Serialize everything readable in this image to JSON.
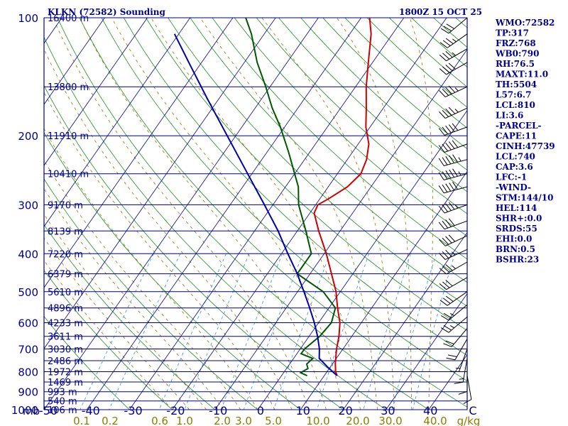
{
  "header": {
    "station": "KLKN (72582) Sounding",
    "time": "1800Z 15 OCT 25"
  },
  "indices": [
    "WMO:72582",
    "TP:317",
    "FRZ:768",
    "WB0:790",
    "RH:76.5",
    "MAXT:11.0",
    "TH:5504",
    "L57:6.7",
    "LCL:810",
    "LI:3.6",
    "-PARCEL-",
    "CAPE:11",
    "CINH:47739",
    "LCL:740",
    "CAP:3.6",
    "LFC:-1",
    "-WIND-",
    "STM:144/10",
    "HEL:114",
    "SHR+:0.0",
    "SRDS:55",
    "EHI:0.0",
    "BRN:0.5",
    "BSHR:23"
  ],
  "colors": {
    "isobar": "#00008b",
    "isotherm": "#00008b",
    "dry_adiabat": "#228b22",
    "moist_adiabat": "#8b7d00",
    "mixing_ratio": "#3399cc",
    "temperature": "#cc0000",
    "dewpoint": "#005500",
    "parcel": "#0000aa",
    "wind": "#000000"
  },
  "chart_data": {
    "type": "line",
    "chart_kind": "skew-T log-P sounding",
    "y_scale": "log",
    "pressure_label": "mb",
    "pressure_levels": [
      100,
      200,
      300,
      400,
      500,
      600,
      700,
      800,
      900,
      1000
    ],
    "temperature_unit": "C",
    "temperature_ticks": [
      -50,
      -40,
      -30,
      -20,
      -10,
      0,
      10,
      20,
      30,
      40
    ],
    "temperature_tick_labels": [
      "-50",
      "-40",
      "-30",
      "-20",
      "-10",
      "0",
      "10",
      "20",
      "30",
      "40",
      "C"
    ],
    "mixing_ratio_unit": "g/kg",
    "mixing_ratio_labels": [
      "0.1",
      "0.2",
      "0.6",
      "1.0",
      "2.0",
      "3.0",
      "5.0",
      "10.0",
      "20.0",
      "30.0",
      "40.0",
      "g/kg"
    ],
    "heights": [
      {
        "p": 100,
        "label": "16400 m"
      },
      {
        "p": 150,
        "label": "13800 m"
      },
      {
        "p": 200,
        "label": "11910 m"
      },
      {
        "p": 250,
        "label": "10410 m"
      },
      {
        "p": 300,
        "label": "9170 m"
      },
      {
        "p": 350,
        "label": "8139 m"
      },
      {
        "p": 400,
        "label": "7220 m"
      },
      {
        "p": 450,
        "label": "6379 m"
      },
      {
        "p": 500,
        "label": "5610 m"
      },
      {
        "p": 550,
        "label": "4896 m"
      },
      {
        "p": 600,
        "label": "4233 m"
      },
      {
        "p": 650,
        "label": "3611 m"
      },
      {
        "p": 700,
        "label": "3030 m"
      },
      {
        "p": 750,
        "label": "2486 m"
      },
      {
        "p": 800,
        "label": "1972 m"
      },
      {
        "p": 850,
        "label": "1469 m"
      },
      {
        "p": 900,
        "label": "993 m"
      },
      {
        "p": 950,
        "label": "540 m"
      },
      {
        "p": 1000,
        "label": "106 m"
      }
    ],
    "series": [
      {
        "key": "temperature",
        "points": [
          [
            819,
            13.0
          ],
          [
            800,
            12.0
          ],
          [
            760,
            10.5
          ],
          [
            700,
            8.5
          ],
          [
            650,
            7.0
          ],
          [
            600,
            5.0
          ],
          [
            550,
            2.0
          ],
          [
            500,
            -1.0
          ],
          [
            450,
            -5.0
          ],
          [
            400,
            -9.5
          ],
          [
            350,
            -15.0
          ],
          [
            315,
            -19.0
          ],
          [
            300,
            -19.5
          ],
          [
            290,
            -18.0
          ],
          [
            270,
            -15.5
          ],
          [
            250,
            -14.5
          ],
          [
            230,
            -15.5
          ],
          [
            210,
            -17.5
          ],
          [
            190,
            -21.0
          ],
          [
            170,
            -24.0
          ],
          [
            150,
            -27.5
          ],
          [
            130,
            -31.0
          ],
          [
            110,
            -35.0
          ],
          [
            100,
            -38.0
          ]
        ]
      },
      {
        "key": "dewpoint",
        "points": [
          [
            819,
            6.0
          ],
          [
            805,
            4.0
          ],
          [
            785,
            5.0
          ],
          [
            765,
            4.0
          ],
          [
            740,
            4.5
          ],
          [
            720,
            1.0
          ],
          [
            700,
            1.0
          ],
          [
            650,
            2.5
          ],
          [
            600,
            3.0
          ],
          [
            550,
            1.5
          ],
          [
            500,
            -4.0
          ],
          [
            450,
            -13.0
          ],
          [
            400,
            -13.0
          ],
          [
            350,
            -18.0
          ],
          [
            300,
            -24.0
          ],
          [
            270,
            -27.0
          ],
          [
            250,
            -30.0
          ],
          [
            220,
            -35.0
          ],
          [
            190,
            -41.0
          ],
          [
            170,
            -46.0
          ],
          [
            150,
            -51.0
          ],
          [
            130,
            -57.0
          ],
          [
            110,
            -63.0
          ],
          [
            100,
            -67.0
          ]
        ]
      },
      {
        "key": "parcel",
        "points": [
          [
            819,
            13.0
          ],
          [
            780,
            9.5
          ],
          [
            740,
            6.0
          ],
          [
            700,
            4.5
          ],
          [
            650,
            2.0
          ],
          [
            600,
            -1.0
          ],
          [
            550,
            -4.5
          ],
          [
            500,
            -8.5
          ],
          [
            450,
            -13.0
          ],
          [
            400,
            -18.5
          ],
          [
            350,
            -24.5
          ],
          [
            300,
            -32.0
          ],
          [
            250,
            -41.0
          ],
          [
            200,
            -52.0
          ],
          [
            160,
            -63.0
          ],
          [
            130,
            -73.0
          ],
          [
            110,
            -81.0
          ]
        ]
      }
    ],
    "winds": [
      {
        "p": 100,
        "dir": 230,
        "spd": 30
      },
      {
        "p": 110,
        "dir": 235,
        "spd": 35
      },
      {
        "p": 120,
        "dir": 240,
        "spd": 35
      },
      {
        "p": 130,
        "dir": 240,
        "spd": 40
      },
      {
        "p": 150,
        "dir": 245,
        "spd": 45
      },
      {
        "p": 170,
        "dir": 245,
        "spd": 45
      },
      {
        "p": 190,
        "dir": 250,
        "spd": 50
      },
      {
        "p": 210,
        "dir": 250,
        "spd": 50
      },
      {
        "p": 230,
        "dir": 255,
        "spd": 55
      },
      {
        "p": 250,
        "dir": 255,
        "spd": 55
      },
      {
        "p": 270,
        "dir": 255,
        "spd": 50
      },
      {
        "p": 300,
        "dir": 250,
        "spd": 45
      },
      {
        "p": 330,
        "dir": 250,
        "spd": 40
      },
      {
        "p": 360,
        "dir": 245,
        "spd": 40
      },
      {
        "p": 390,
        "dir": 245,
        "spd": 35
      },
      {
        "p": 420,
        "dir": 240,
        "spd": 35
      },
      {
        "p": 460,
        "dir": 240,
        "spd": 30
      },
      {
        "p": 500,
        "dir": 235,
        "spd": 30
      },
      {
        "p": 540,
        "dir": 230,
        "spd": 25
      },
      {
        "p": 580,
        "dir": 230,
        "spd": 25
      },
      {
        "p": 620,
        "dir": 220,
        "spd": 20
      },
      {
        "p": 660,
        "dir": 210,
        "spd": 20
      },
      {
        "p": 700,
        "dir": 200,
        "spd": 15
      },
      {
        "p": 740,
        "dir": 190,
        "spd": 15
      },
      {
        "p": 780,
        "dir": 180,
        "spd": 10
      },
      {
        "p": 819,
        "dir": 170,
        "spd": 10
      }
    ]
  }
}
